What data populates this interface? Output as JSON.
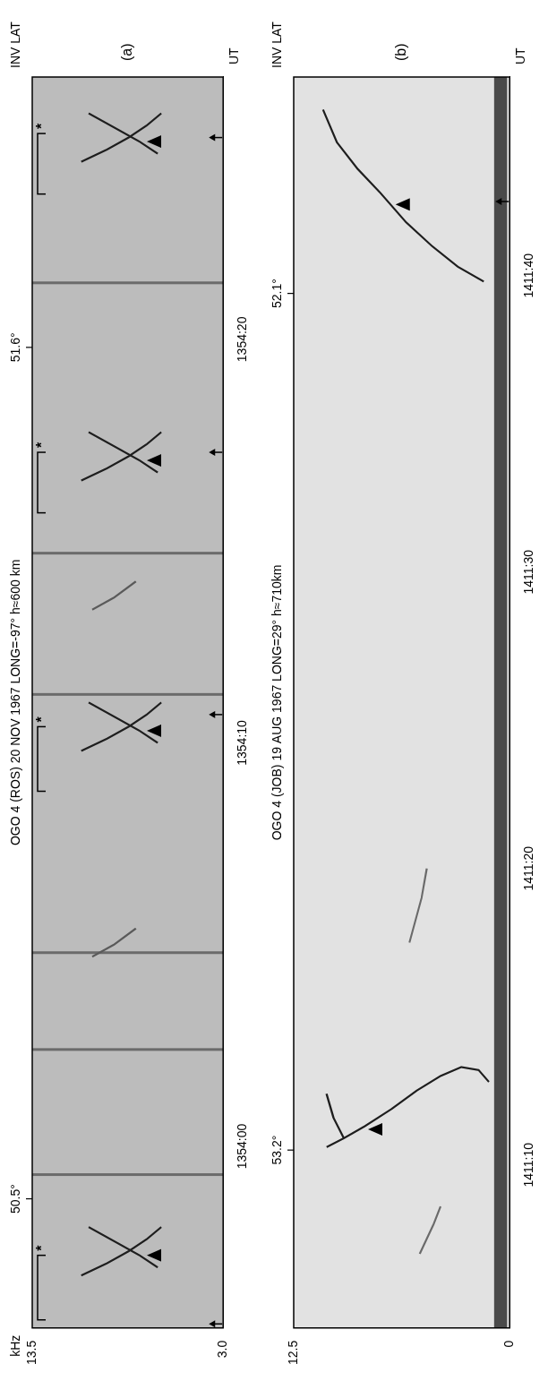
{
  "chart_data": [
    {
      "type": "scatter",
      "panel": "(a)",
      "title": "OGO 4 (ROS) 20 NOV 1967 LONG=-97° h≈600 km",
      "x_label": "UT",
      "lat_label": "INV LAT",
      "y_label": "kHz",
      "xlim": [
        50035.5,
        50066.5
      ],
      "xticks": [
        {
          "value": 50040,
          "label": "1354:00"
        },
        {
          "value": 50050,
          "label": "1354:10"
        },
        {
          "value": 50060,
          "label": "1354:20"
        }
      ],
      "ylim": [
        3,
        13.5
      ],
      "yticks": [
        {
          "value": 3,
          "label": "3.0"
        },
        13.5
      ],
      "grid": false,
      "lat_marks": [
        {
          "x": 50038.7,
          "label": "50.5°"
        },
        {
          "x": 50059.8,
          "label": "51.6°"
        }
      ],
      "series": [
        {
          "color": "#1e1e1e",
          "x": [
            50036.8,
            50037.1,
            50037.4,
            50037.7,
            50038.0
          ],
          "values": [
            10.8,
            9.4,
            8.2,
            7.2,
            6.4
          ]
        },
        {
          "color": "#1e1e1e",
          "x": [
            50037.0,
            50037.3,
            50037.6,
            50038.0
          ],
          "values": [
            6.6,
            7.6,
            8.8,
            10.4
          ]
        },
        {
          "color": "#1e1e1e",
          "x": [
            50049.8,
            50050.1,
            50050.4,
            50050.7,
            50051.0
          ],
          "values": [
            10.8,
            9.4,
            8.2,
            7.2,
            6.4
          ]
        },
        {
          "color": "#1e1e1e",
          "x": [
            50050.0,
            50050.3,
            50050.6,
            50051.0
          ],
          "values": [
            6.6,
            7.6,
            8.8,
            10.4
          ]
        },
        {
          "color": "#1e1e1e",
          "x": [
            50056.5,
            50056.8,
            50057.1,
            50057.4,
            50057.7
          ],
          "values": [
            10.8,
            9.4,
            8.2,
            7.2,
            6.4
          ]
        },
        {
          "color": "#1e1e1e",
          "x": [
            50056.7,
            50057.0,
            50057.3,
            50057.7
          ],
          "values": [
            6.6,
            7.6,
            8.8,
            10.4
          ]
        },
        {
          "color": "#1e1e1e",
          "x": [
            50064.4,
            50064.7,
            50065.0,
            50065.3,
            50065.6
          ],
          "values": [
            10.8,
            9.4,
            8.2,
            7.2,
            6.4
          ]
        },
        {
          "color": "#1e1e1e",
          "x": [
            50064.6,
            50064.9,
            50065.2,
            50065.6
          ],
          "values": [
            6.6,
            7.6,
            8.8,
            10.4
          ]
        },
        {
          "color": "#5a5a5a",
          "x": [
            50044.7,
            50045.0,
            50045.4
          ],
          "values": [
            10.2,
            9.0,
            7.8
          ]
        },
        {
          "color": "#5a5a5a",
          "x": [
            50053.3,
            50053.6,
            50054.0
          ],
          "values": [
            10.2,
            9.0,
            7.8
          ]
        }
      ],
      "sferics": [
        50039.3,
        50042.4,
        50044.8,
        50051.2,
        50054.7,
        50061.4
      ],
      "arrows": [
        {
          "x": 50037.3,
          "y": 7.2
        },
        {
          "x": 50050.3,
          "y": 7.2
        },
        {
          "x": 50057.0,
          "y": 7.2
        },
        {
          "x": 50064.9,
          "y": 7.2
        }
      ],
      "brackets": [
        {
          "from": 50035.7,
          "to": 50037.3,
          "label": "*"
        },
        {
          "from": 50048.8,
          "to": 50050.4,
          "label": "*"
        },
        {
          "from": 50055.7,
          "to": 50057.2,
          "label": "*"
        },
        {
          "from": 50063.6,
          "to": 50065.1,
          "label": "*"
        }
      ],
      "time_marks": [
        50035.6,
        50050.7,
        50057.2,
        50065.0
      ]
    },
    {
      "type": "scatter",
      "panel": "(b)",
      "title": "OGO 4 (JOB) 19 AUG 1967 LONG=29° h≈710km",
      "x_label": "UT",
      "lat_label": "INV LAT",
      "xlim": [
        51064.5,
        51106.7
      ],
      "xticks": [
        {
          "value": 51070,
          "label": "1411:10"
        },
        {
          "value": 51080,
          "label": "1411:20"
        },
        {
          "value": 51090,
          "label": "1411:30"
        },
        {
          "value": 51100,
          "label": "1411:40"
        }
      ],
      "ylim": [
        0,
        12.5
      ],
      "yticks": [
        0,
        12.5
      ],
      "grid": false,
      "lat_marks": [
        {
          "x": 51070.5,
          "label": "53.2°"
        },
        {
          "x": 51099.4,
          "label": "52.1°"
        }
      ],
      "series": [
        {
          "color": "#1e1e1e",
          "x": [
            51070.6,
            51070.9,
            51071.3,
            51071.9,
            51072.5,
            51073.0,
            51073.3,
            51073.2,
            51072.8
          ],
          "values": [
            10.6,
            9.6,
            8.4,
            6.8,
            5.4,
            4.0,
            2.8,
            1.8,
            1.2
          ]
        },
        {
          "color": "#1e1e1e",
          "x": [
            51070.9,
            51071.6,
            51072.4
          ],
          "values": [
            9.6,
            10.2,
            10.6
          ]
        },
        {
          "color": "#1e1e1e",
          "x": [
            51099.8,
            51100.3,
            51101.0,
            51101.8,
            51102.8,
            51103.6,
            51104.5,
            51105.6
          ],
          "values": [
            1.5,
            3.0,
            4.5,
            6.0,
            7.5,
            8.8,
            10.0,
            10.8
          ]
        },
        {
          "color": "#6a6a6a",
          "x": [
            51067.0,
            51068.0,
            51068.6
          ],
          "values": [
            5.2,
            4.4,
            4.0
          ]
        },
        {
          "color": "#6a6a6a",
          "x": [
            51077.5,
            51079.0,
            51080.0
          ],
          "values": [
            5.8,
            5.1,
            4.8
          ]
        }
      ],
      "bands": [
        {
          "from": 0.15,
          "to": 0.9
        }
      ],
      "arrows": [
        {
          "x": 51071.2,
          "y": 8.2
        },
        {
          "x": 51102.4,
          "y": 6.6
        }
      ],
      "time_marks": [
        51102.5
      ]
    }
  ]
}
